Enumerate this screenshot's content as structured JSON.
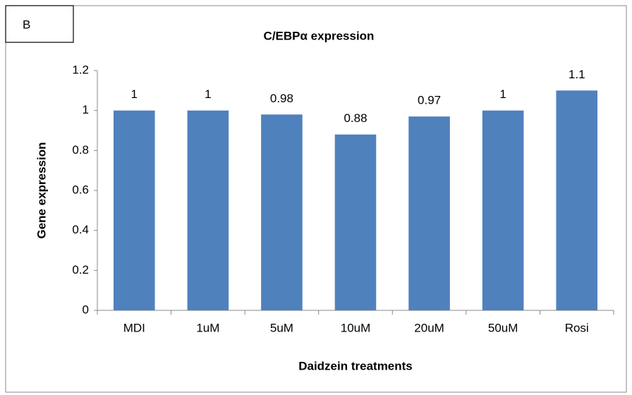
{
  "chart_data": {
    "type": "bar",
    "panel_label": "B",
    "title": "C/EBPα expression",
    "xlabel": "Daidzein treatments",
    "ylabel": "Gene expression",
    "categories": [
      "MDI",
      "1uM",
      "5uM",
      "10uM",
      "20uM",
      "50uM",
      "Rosi"
    ],
    "values": [
      1,
      1,
      0.98,
      0.88,
      0.97,
      1,
      1.1
    ],
    "color": "#4f81bd",
    "ylim": [
      0,
      1.2
    ],
    "yticks": [
      0,
      0.2,
      0.4,
      0.6,
      0.8,
      1,
      1.2
    ],
    "grid": false
  }
}
